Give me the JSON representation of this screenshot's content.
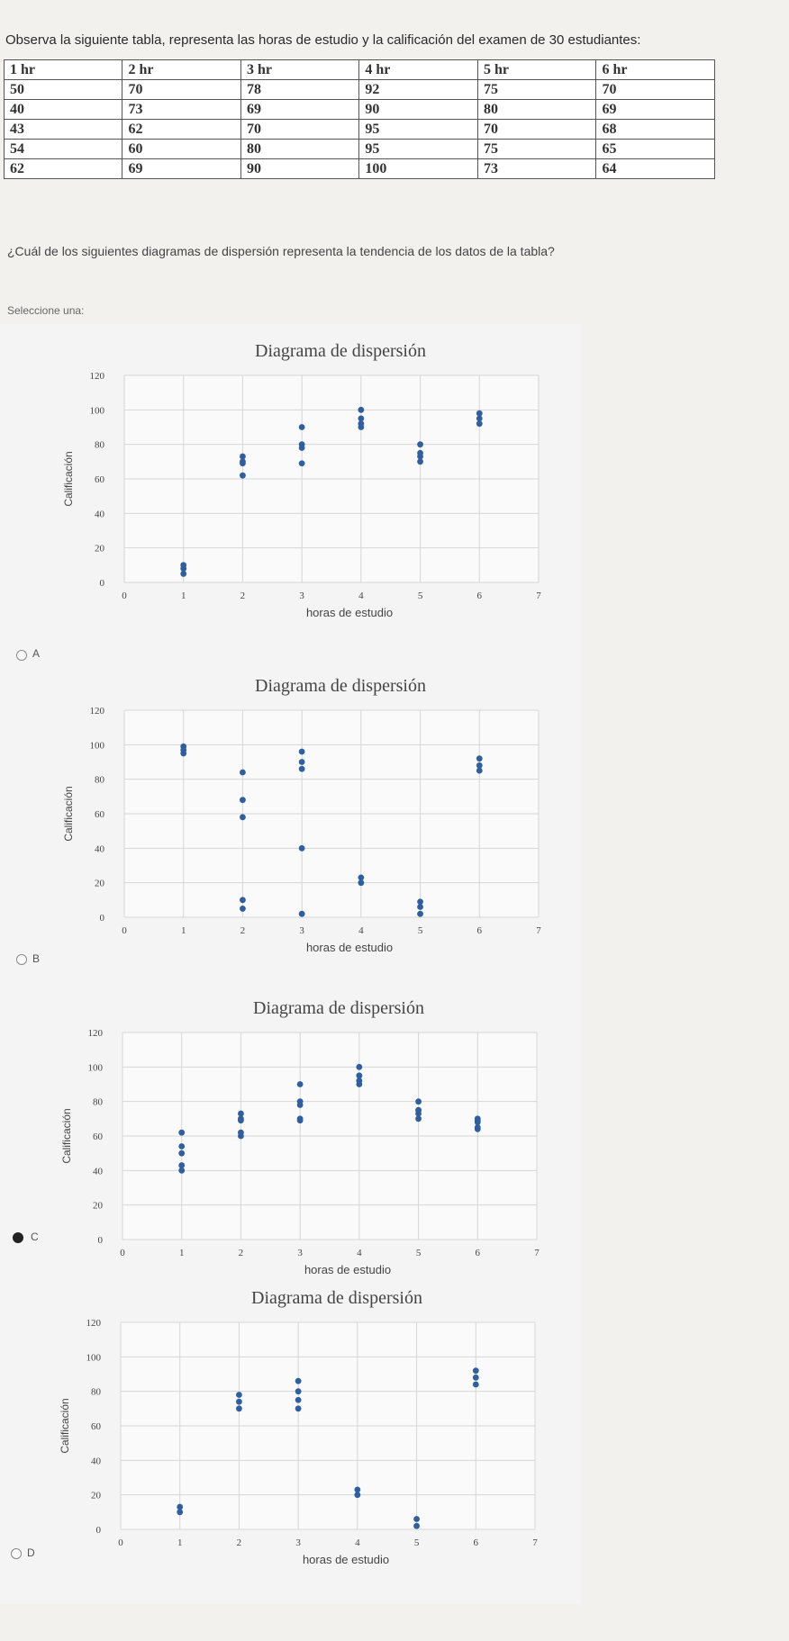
{
  "intro": "Observa la siguiente tabla, representa las horas de estudio y la calificación del examen de 30 estudiantes:",
  "table": {
    "headers": [
      "1 hr",
      "2 hr",
      "3 hr",
      "4 hr",
      "5 hr",
      "6 hr"
    ],
    "rows": [
      [
        "50",
        "70",
        "78",
        "92",
        "75",
        "70"
      ],
      [
        "40",
        "73",
        "69",
        "90",
        "80",
        "69"
      ],
      [
        "43",
        "62",
        "70",
        "95",
        "70",
        "68"
      ],
      [
        "54",
        "60",
        "80",
        "95",
        "75",
        "65"
      ],
      [
        "62",
        "69",
        "90",
        "100",
        "73",
        "64"
      ]
    ]
  },
  "question": "¿Cuál de los siguientes diagramas de dispersión representa la tendencia de los datos de la tabla?",
  "select_label": "Seleccione una:",
  "options": [
    {
      "letter": "A",
      "selected": false
    },
    {
      "letter": "B",
      "selected": false
    },
    {
      "letter": "C",
      "selected": true
    },
    {
      "letter": "D",
      "selected": false
    }
  ],
  "chart_data": [
    {
      "type": "scatter",
      "title": "Diagrama de dispersión",
      "xlabel": "horas de estudio",
      "ylabel": "Calificación",
      "xlim": [
        0,
        7
      ],
      "ylim": [
        0,
        120
      ],
      "x_ticks": [
        "0",
        "1",
        "2",
        "3",
        "4",
        "5",
        "6",
        "7"
      ],
      "y_ticks": [
        "0",
        "20",
        "40",
        "60",
        "80",
        "100",
        "120"
      ],
      "grid": true,
      "point_color": "#2f5f9e",
      "points": [
        {
          "x": 1,
          "y": 5
        },
        {
          "x": 1,
          "y": 8
        },
        {
          "x": 1,
          "y": 10
        },
        {
          "x": 2,
          "y": 62
        },
        {
          "x": 2,
          "y": 69
        },
        {
          "x": 2,
          "y": 70
        },
        {
          "x": 2,
          "y": 73
        },
        {
          "x": 3,
          "y": 69
        },
        {
          "x": 3,
          "y": 78
        },
        {
          "x": 3,
          "y": 80
        },
        {
          "x": 3,
          "y": 90
        },
        {
          "x": 4,
          "y": 90
        },
        {
          "x": 4,
          "y": 92
        },
        {
          "x": 4,
          "y": 95
        },
        {
          "x": 4,
          "y": 100
        },
        {
          "x": 5,
          "y": 70
        },
        {
          "x": 5,
          "y": 73
        },
        {
          "x": 5,
          "y": 75
        },
        {
          "x": 5,
          "y": 80
        },
        {
          "x": 6,
          "y": 92
        },
        {
          "x": 6,
          "y": 95
        },
        {
          "x": 6,
          "y": 98
        }
      ]
    },
    {
      "type": "scatter",
      "title": "Diagrama de dispersión",
      "xlabel": "horas de estudio",
      "ylabel": "Calificación",
      "xlim": [
        0,
        7
      ],
      "ylim": [
        0,
        120
      ],
      "x_ticks": [
        "0",
        "1",
        "2",
        "3",
        "4",
        "5",
        "6",
        "7"
      ],
      "y_ticks": [
        "0",
        "20",
        "40",
        "60",
        "80",
        "100",
        "120"
      ],
      "grid": true,
      "point_color": "#2f5f9e",
      "points": [
        {
          "x": 1,
          "y": 95
        },
        {
          "x": 1,
          "y": 97
        },
        {
          "x": 1,
          "y": 99
        },
        {
          "x": 2,
          "y": 5
        },
        {
          "x": 2,
          "y": 10
        },
        {
          "x": 2,
          "y": 58
        },
        {
          "x": 2,
          "y": 68
        },
        {
          "x": 2,
          "y": 84
        },
        {
          "x": 3,
          "y": 2
        },
        {
          "x": 3,
          "y": 40
        },
        {
          "x": 3,
          "y": 86
        },
        {
          "x": 3,
          "y": 90
        },
        {
          "x": 3,
          "y": 96
        },
        {
          "x": 4,
          "y": 20
        },
        {
          "x": 4,
          "y": 23
        },
        {
          "x": 5,
          "y": 2
        },
        {
          "x": 5,
          "y": 6
        },
        {
          "x": 5,
          "y": 9
        },
        {
          "x": 6,
          "y": 85
        },
        {
          "x": 6,
          "y": 88
        },
        {
          "x": 6,
          "y": 92
        }
      ]
    },
    {
      "type": "scatter",
      "title": "Diagrama de dispersión",
      "xlabel": "horas de estudio",
      "ylabel": "Calificación",
      "xlim": [
        0,
        7
      ],
      "ylim": [
        0,
        120
      ],
      "x_ticks": [
        "0",
        "1",
        "2",
        "3",
        "4",
        "5",
        "6",
        "7"
      ],
      "y_ticks": [
        "0",
        "20",
        "40",
        "60",
        "80",
        "100",
        "120"
      ],
      "grid": true,
      "point_color": "#2f5f9e",
      "points": [
        {
          "x": 1,
          "y": 40
        },
        {
          "x": 1,
          "y": 43
        },
        {
          "x": 1,
          "y": 50
        },
        {
          "x": 1,
          "y": 54
        },
        {
          "x": 1,
          "y": 62
        },
        {
          "x": 2,
          "y": 60
        },
        {
          "x": 2,
          "y": 62
        },
        {
          "x": 2,
          "y": 69
        },
        {
          "x": 2,
          "y": 70
        },
        {
          "x": 2,
          "y": 73
        },
        {
          "x": 3,
          "y": 69
        },
        {
          "x": 3,
          "y": 70
        },
        {
          "x": 3,
          "y": 78
        },
        {
          "x": 3,
          "y": 80
        },
        {
          "x": 3,
          "y": 90
        },
        {
          "x": 4,
          "y": 90
        },
        {
          "x": 4,
          "y": 92
        },
        {
          "x": 4,
          "y": 95
        },
        {
          "x": 4,
          "y": 95
        },
        {
          "x": 4,
          "y": 100
        },
        {
          "x": 5,
          "y": 70
        },
        {
          "x": 5,
          "y": 73
        },
        {
          "x": 5,
          "y": 75
        },
        {
          "x": 5,
          "y": 75
        },
        {
          "x": 5,
          "y": 80
        },
        {
          "x": 6,
          "y": 64
        },
        {
          "x": 6,
          "y": 65
        },
        {
          "x": 6,
          "y": 68
        },
        {
          "x": 6,
          "y": 69
        },
        {
          "x": 6,
          "y": 70
        }
      ]
    },
    {
      "type": "scatter",
      "title": "Diagrama de dispersión",
      "xlabel": "horas de estudio",
      "ylabel": "Calificación",
      "xlim": [
        0,
        7
      ],
      "ylim": [
        0,
        120
      ],
      "x_ticks": [
        "0",
        "1",
        "2",
        "3",
        "4",
        "5",
        "6",
        "7"
      ],
      "y_ticks": [
        "0",
        "20",
        "40",
        "60",
        "80",
        "100",
        "120"
      ],
      "grid": true,
      "point_color": "#2f5f9e",
      "points": [
        {
          "x": 1,
          "y": 10
        },
        {
          "x": 1,
          "y": 13
        },
        {
          "x": 2,
          "y": 70
        },
        {
          "x": 2,
          "y": 74
        },
        {
          "x": 2,
          "y": 78
        },
        {
          "x": 3,
          "y": 70
        },
        {
          "x": 3,
          "y": 75
        },
        {
          "x": 3,
          "y": 80
        },
        {
          "x": 3,
          "y": 86
        },
        {
          "x": 4,
          "y": 20
        },
        {
          "x": 4,
          "y": 23
        },
        {
          "x": 5,
          "y": 2
        },
        {
          "x": 5,
          "y": 6
        },
        {
          "x": 6,
          "y": 84
        },
        {
          "x": 6,
          "y": 88
        },
        {
          "x": 6,
          "y": 92
        }
      ]
    }
  ]
}
